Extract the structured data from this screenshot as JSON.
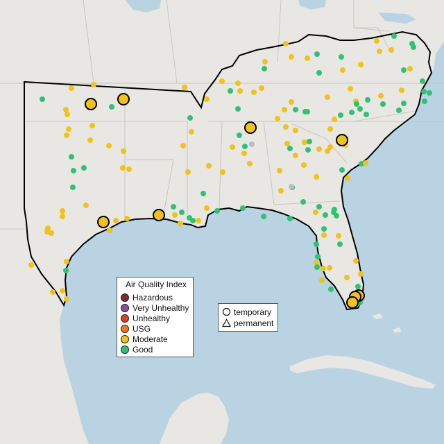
{
  "legend": {
    "title": "Air Quality Index",
    "categories": [
      {
        "label": "Hazardous",
        "color": "#7e2c2a"
      },
      {
        "label": "Very Unhealthy",
        "color": "#8e4ca0"
      },
      {
        "label": "Unhealthy",
        "color": "#e23c2c"
      },
      {
        "label": "USG",
        "color": "#ec7a1c"
      },
      {
        "label": "Moderate",
        "color": "#f0c21a"
      },
      {
        "label": "Good",
        "color": "#2fc274"
      }
    ]
  },
  "monitor_types": {
    "temporary_label": "temporary",
    "permanent_label": "permanent"
  },
  "colors": {
    "water": "#b9d3e3",
    "land": "#e9e7e3",
    "state_line": "#c9c6c0",
    "region_outline": "#000000"
  }
}
